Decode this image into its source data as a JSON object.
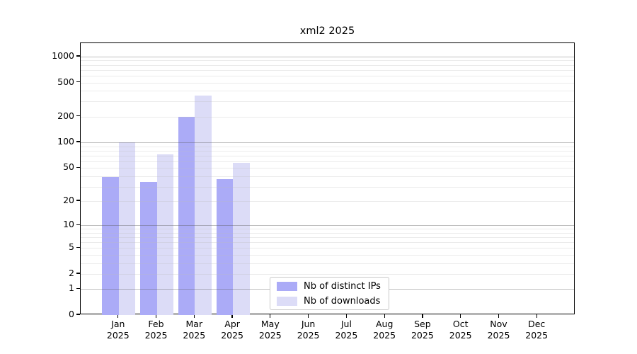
{
  "chart_data": {
    "type": "bar",
    "title": "xml2 2025",
    "categories": [
      "Jan",
      "Feb",
      "Mar",
      "Apr",
      "May",
      "Jun",
      "Jul",
      "Aug",
      "Sep",
      "Oct",
      "Nov",
      "Dec"
    ],
    "category_year": "2025",
    "series": [
      {
        "name": "Nb of distinct IPs",
        "color": "#ababf7",
        "values": [
          39,
          34,
          200,
          37,
          0,
          0,
          0,
          0,
          0,
          0,
          0,
          0
        ]
      },
      {
        "name": "Nb of downloads",
        "color": "#dcdcf7",
        "values": [
          100,
          73,
          350,
          58,
          0,
          0,
          0,
          0,
          0,
          0,
          0,
          0
        ]
      }
    ],
    "y_ticks": [
      0,
      1,
      2,
      5,
      10,
      20,
      50,
      100,
      200,
      500,
      1000
    ],
    "y_scale": "log1p",
    "y_axis_max": 1430,
    "xlabel": "",
    "ylabel": "",
    "grid": true,
    "legend_position": "lower center"
  },
  "colors": {
    "background": "#ffffff",
    "spine": "#000000",
    "text": "#000000",
    "major_grid": "#bdbdbd",
    "minor_grid": "#e9e9e9",
    "bar_distinct_ips": "#ababf7",
    "bar_downloads": "#dcdcf7"
  }
}
